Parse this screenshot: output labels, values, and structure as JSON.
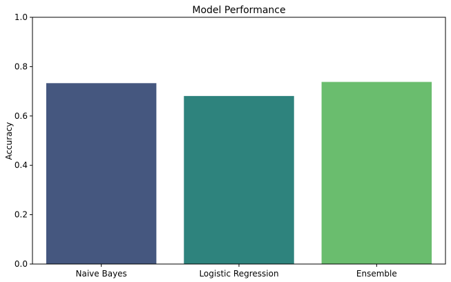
{
  "chart_data": {
    "type": "bar",
    "title": "Model Performance",
    "xlabel": "",
    "ylabel": "Accuracy",
    "categories": [
      "Naive Bayes",
      "Logistic Regression",
      "Ensemble"
    ],
    "values": [
      0.733,
      0.681,
      0.738
    ],
    "colors": [
      "#45577f",
      "#2e837d",
      "#6abd6e"
    ],
    "ylim": [
      0,
      1.0
    ],
    "yticks": [
      "0.0",
      "0.2",
      "0.4",
      "0.6",
      "0.8",
      "1.0"
    ],
    "grid": false,
    "legend": "none"
  }
}
